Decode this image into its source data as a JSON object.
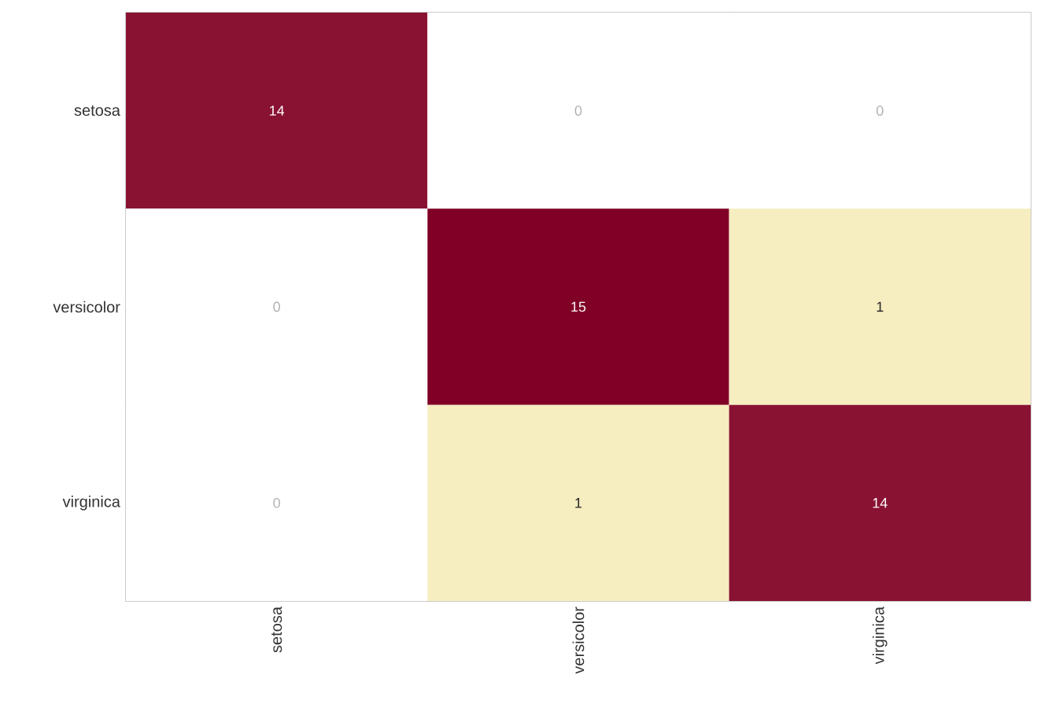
{
  "chart_data": {
    "type": "heatmap",
    "categories": [
      "setosa",
      "versicolor",
      "virginica"
    ],
    "y_categories": [
      "setosa",
      "versicolor",
      "virginica"
    ],
    "cells": [
      [
        14,
        0,
        0
      ],
      [
        0,
        15,
        1
      ],
      [
        0,
        1,
        14
      ]
    ],
    "data_labels": true,
    "cell_labels": [
      [
        "14",
        "0",
        "0"
      ],
      [
        "0",
        "15",
        "1"
      ],
      [
        "0",
        "1",
        "14"
      ]
    ]
  }
}
